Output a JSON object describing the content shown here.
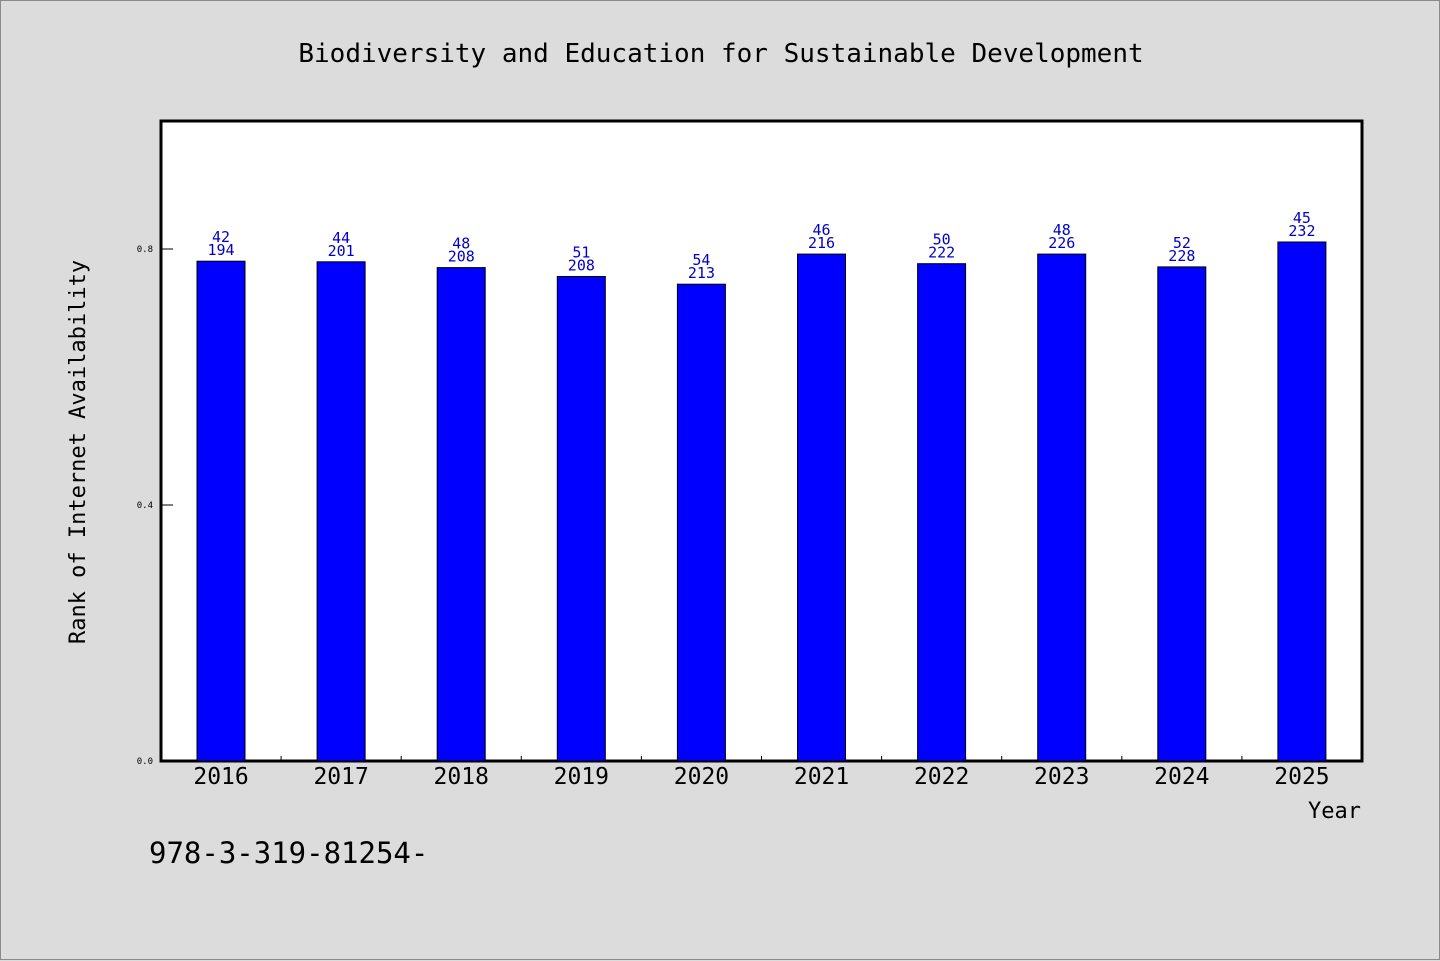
{
  "chart_data": {
    "type": "bar",
    "title": "Biodiversity and Education for Sustainable Development",
    "xlabel": "Year",
    "ylabel": "Rank of Internet Availability",
    "categories": [
      "2016",
      "2017",
      "2018",
      "2019",
      "2020",
      "2021",
      "2022",
      "2023",
      "2024",
      "2025"
    ],
    "values": [
      0.781,
      0.78,
      0.771,
      0.757,
      0.745,
      0.792,
      0.777,
      0.792,
      0.772,
      0.811
    ],
    "bar_labels": [
      {
        "top": "42",
        "bottom": "194"
      },
      {
        "top": "44",
        "bottom": "201"
      },
      {
        "top": "48",
        "bottom": "208"
      },
      {
        "top": "51",
        "bottom": "208"
      },
      {
        "top": "54",
        "bottom": "213"
      },
      {
        "top": "46",
        "bottom": "216"
      },
      {
        "top": "50",
        "bottom": "222"
      },
      {
        "top": "48",
        "bottom": "226"
      },
      {
        "top": "52",
        "bottom": "228"
      },
      {
        "top": "45",
        "bottom": "232"
      }
    ],
    "yticks": [
      {
        "value": 0.0,
        "label": "0.0"
      },
      {
        "value": 0.4,
        "label": "0.4"
      },
      {
        "value": 0.8,
        "label": "0.8"
      }
    ],
    "ylim": [
      0,
      1.0
    ],
    "grid": false,
    "legend": "none",
    "bar_color": "#0000ff",
    "label_color": "#0000c8"
  },
  "footer": {
    "isbn_text": "978-3-319-81254-"
  }
}
